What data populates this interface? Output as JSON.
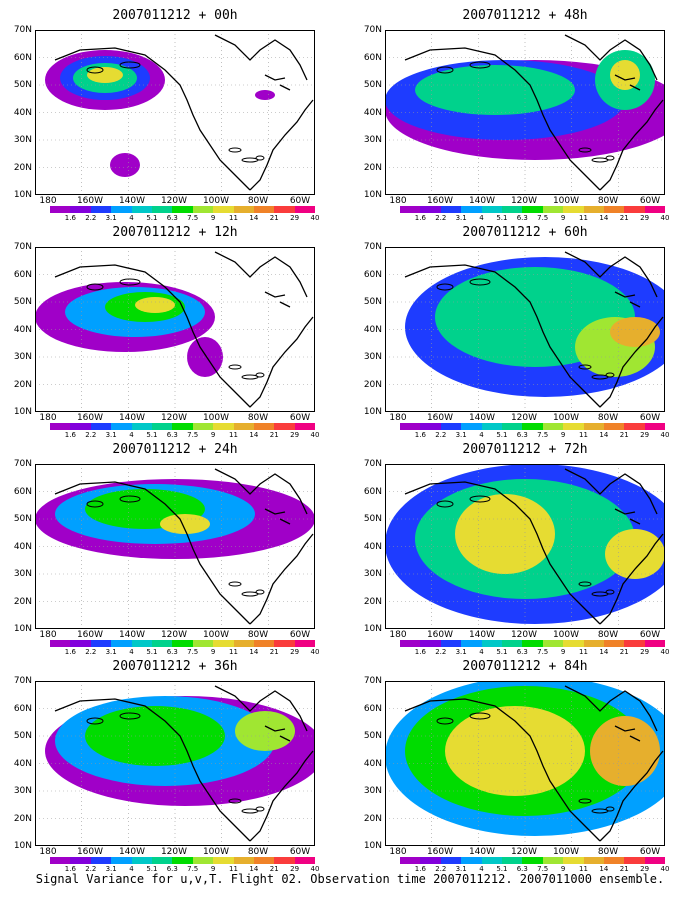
{
  "panels": [
    {
      "title": "2007011212 + 00h",
      "lead": "00h"
    },
    {
      "title": "2007011212 + 48h",
      "lead": "48h"
    },
    {
      "title": "2007011212 + 12h",
      "lead": "12h"
    },
    {
      "title": "2007011212 + 60h",
      "lead": "60h"
    },
    {
      "title": "2007011212 + 24h",
      "lead": "24h"
    },
    {
      "title": "2007011212 + 72h",
      "lead": "72h"
    },
    {
      "title": "2007011212 + 36h",
      "lead": "36h"
    },
    {
      "title": "2007011212 + 84h",
      "lead": "84h"
    }
  ],
  "axes": {
    "lat_labels": [
      "70N",
      "60N",
      "50N",
      "40N",
      "30N",
      "20N",
      "10N"
    ],
    "lon_labels": [
      "180",
      "160W",
      "140W",
      "120W",
      "100W",
      "80W",
      "60W"
    ]
  },
  "colorbar": {
    "levels": [
      "1.6",
      "2.2",
      "3.1",
      "4",
      "5.1",
      "6.3",
      "7.5",
      "9",
      "11",
      "14",
      "21",
      "29",
      "40"
    ],
    "colors": [
      "#a000c8",
      "#8200dc",
      "#1e3cff",
      "#00a0ff",
      "#00c8c8",
      "#00d28c",
      "#00dc00",
      "#a0e632",
      "#e6dc32",
      "#e6af2d",
      "#f08228",
      "#fa3c3c",
      "#f00082"
    ]
  },
  "caption": "Signal Variance for u,v,T. Flight 02. Observation time 2007011212. 2007011000 ensemble."
}
